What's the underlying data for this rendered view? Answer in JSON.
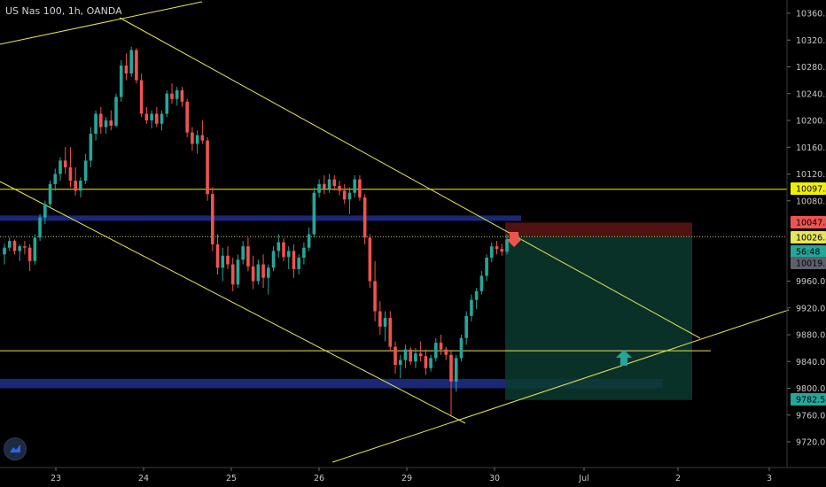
{
  "header": {
    "symbol_title": "US Nas 100, 1h, OANDA"
  },
  "colors": {
    "background": "#000000",
    "up_candle": "#26a69a",
    "down_candle": "#ef5350",
    "trend_lines": "#e6e65a",
    "zones": "#1e2f8c",
    "stop_zone": "#5a1414",
    "target_zone": "#0c3a2e"
  },
  "price_badges": [
    {
      "label": "10097.2",
      "color": "#f0f000",
      "text_color": "#000000"
    },
    {
      "label": "10047.4",
      "color": "#ef5350",
      "text_color": "#ffffff"
    },
    {
      "label": "10026.5",
      "color": "#e6e65a",
      "text_color": "#000000"
    },
    {
      "label": "56:48",
      "color": "#26a69a",
      "text_color": "#ffffff"
    },
    {
      "label": "10019.8",
      "color": "#5d606b",
      "text_color": "#ffffff"
    },
    {
      "label": "9782.5",
      "color": "#26a69a",
      "text_color": "#ffffff"
    }
  ],
  "chart_data": {
    "type": "candlestick",
    "symbol": "US Nas 100",
    "interval": "1h",
    "source": "OANDA",
    "y_ticks": [
      10360,
      10320,
      10280,
      10240,
      10200,
      10160,
      10120,
      10080,
      9960,
      9920,
      9880,
      9840,
      9800,
      9760,
      9720
    ],
    "y_tick_labels": [
      "10360.0",
      "10320.0",
      "10280.0",
      "10240.0",
      "10200.0",
      "10160.0",
      "10120.0",
      "10080.0",
      "9960.0",
      "9920.0",
      "9880.0",
      "9840.0",
      "9800.0",
      "9760.0",
      "9720.0"
    ],
    "ylim": [
      9690,
      10380
    ],
    "x_tick_labels": [
      "23",
      "24",
      "25",
      "26",
      "29",
      "30",
      "Jul",
      "2",
      "3"
    ],
    "grid": false,
    "horizontal_levels": [
      10097.2,
      9856
    ],
    "zones": [
      {
        "from": 10058,
        "to": 10050
      },
      {
        "from": 9814,
        "to": 9800
      }
    ],
    "position": {
      "entry": 10026.5,
      "stop": 10047.4,
      "target": 9782.5
    },
    "candle_values": [
      [
        10000,
        10016,
        9985,
        10010
      ],
      [
        10010,
        10025,
        10005,
        10020
      ],
      [
        10020,
        10022,
        10000,
        10005
      ],
      [
        10005,
        10015,
        9990,
        10012
      ],
      [
        10012,
        10020,
        10000,
        10010
      ],
      [
        10010,
        10015,
        9975,
        9990
      ],
      [
        9990,
        10030,
        9985,
        10025
      ],
      [
        10025,
        10060,
        10020,
        10055
      ],
      [
        10055,
        10080,
        10045,
        10075
      ],
      [
        10075,
        10110,
        10070,
        10105
      ],
      [
        10105,
        10128,
        10095,
        10120
      ],
      [
        10120,
        10145,
        10110,
        10140
      ],
      [
        10140,
        10160,
        10120,
        10130
      ],
      [
        10130,
        10160,
        10100,
        10110
      ],
      [
        10110,
        10130,
        10088,
        10095
      ],
      [
        10095,
        10115,
        10085,
        10110
      ],
      [
        10110,
        10150,
        10105,
        10140
      ],
      [
        10140,
        10190,
        10130,
        10180
      ],
      [
        10180,
        10215,
        10170,
        10210
      ],
      [
        10210,
        10220,
        10180,
        10190
      ],
      [
        10190,
        10205,
        10180,
        10200
      ],
      [
        10200,
        10215,
        10185,
        10192
      ],
      [
        10192,
        10240,
        10190,
        10235
      ],
      [
        10235,
        10290,
        10228,
        10282
      ],
      [
        10282,
        10300,
        10260,
        10270
      ],
      [
        10270,
        10310,
        10265,
        10305
      ],
      [
        10305,
        10308,
        10255,
        10260
      ],
      [
        10260,
        10270,
        10205,
        10210
      ],
      [
        10210,
        10220,
        10195,
        10200
      ],
      [
        10200,
        10215,
        10188,
        10210
      ],
      [
        10210,
        10220,
        10190,
        10195
      ],
      [
        10195,
        10215,
        10185,
        10210
      ],
      [
        10210,
        10245,
        10205,
        10240
      ],
      [
        10240,
        10255,
        10225,
        10232
      ],
      [
        10232,
        10250,
        10222,
        10245
      ],
      [
        10245,
        10250,
        10220,
        10228
      ],
      [
        10228,
        10232,
        10175,
        10182
      ],
      [
        10182,
        10190,
        10155,
        10165
      ],
      [
        10165,
        10185,
        10150,
        10178
      ],
      [
        10178,
        10200,
        10165,
        10170
      ],
      [
        10170,
        10175,
        10080,
        10090
      ],
      [
        10090,
        10100,
        10005,
        10015
      ],
      [
        10015,
        10030,
        9970,
        9980
      ],
      [
        9980,
        10010,
        9960,
        9998
      ],
      [
        9998,
        10012,
        9978,
        9985
      ],
      [
        9985,
        9995,
        9945,
        9955
      ],
      [
        9955,
        10000,
        9950,
        9992
      ],
      [
        9992,
        10020,
        9985,
        10012
      ],
      [
        10012,
        10025,
        9975,
        9982
      ],
      [
        9982,
        9998,
        9948,
        9960
      ],
      [
        9960,
        9992,
        9955,
        9985
      ],
      [
        9985,
        10000,
        9950,
        9965
      ],
      [
        9965,
        9985,
        9940,
        9980
      ],
      [
        9980,
        10012,
        9975,
        10005
      ],
      [
        10005,
        10030,
        9995,
        10018
      ],
      [
        10018,
        10024,
        9990,
        9996
      ],
      [
        9996,
        10012,
        9978,
        10005
      ],
      [
        10005,
        10015,
        9965,
        9978
      ],
      [
        9978,
        10000,
        9970,
        9995
      ],
      [
        9995,
        10018,
        9985,
        10010
      ],
      [
        10010,
        10040,
        10005,
        10030
      ],
      [
        10030,
        10100,
        10025,
        10092
      ],
      [
        10092,
        10112,
        10085,
        10105
      ],
      [
        10105,
        10118,
        10090,
        10098
      ],
      [
        10098,
        10120,
        10092,
        10112
      ],
      [
        10112,
        10118,
        10095,
        10102
      ],
      [
        10102,
        10110,
        10088,
        10095
      ],
      [
        10095,
        10105,
        10075,
        10082
      ],
      [
        10082,
        10100,
        10060,
        10092
      ],
      [
        10092,
        10118,
        10085,
        10112
      ],
      [
        10112,
        10118,
        10080,
        10085
      ],
      [
        10085,
        10090,
        10015,
        10025
      ],
      [
        10025,
        10030,
        9950,
        9960
      ],
      [
        9960,
        9990,
        9900,
        9915
      ],
      [
        9915,
        9930,
        9880,
        9892
      ],
      [
        9892,
        9915,
        9870,
        9905
      ],
      [
        9905,
        9915,
        9855,
        9862
      ],
      [
        9862,
        9870,
        9822,
        9835
      ],
      [
        9835,
        9850,
        9815,
        9842
      ],
      [
        9842,
        9865,
        9830,
        9858
      ],
      [
        9858,
        9862,
        9835,
        9840
      ],
      [
        9840,
        9860,
        9830,
        9852
      ],
      [
        9852,
        9870,
        9840,
        9848
      ],
      [
        9848,
        9858,
        9820,
        9830
      ],
      [
        9830,
        9850,
        9825,
        9845
      ],
      [
        9845,
        9875,
        9840,
        9868
      ],
      [
        9868,
        9880,
        9850,
        9858
      ],
      [
        9858,
        9862,
        9842,
        9850
      ],
      [
        9850,
        9855,
        9760,
        9810
      ],
      [
        9810,
        9850,
        9795,
        9845
      ],
      [
        9845,
        9880,
        9840,
        9875
      ],
      [
        9875,
        9915,
        9865,
        9908
      ],
      [
        9908,
        9940,
        9900,
        9932
      ],
      [
        9932,
        9950,
        9918,
        9945
      ],
      [
        9945,
        9975,
        9940,
        9968
      ],
      [
        9968,
        10000,
        9960,
        9995
      ],
      [
        9995,
        10018,
        9988,
        10012
      ],
      [
        10012,
        10020,
        10000,
        10008
      ],
      [
        10008,
        10016,
        9998,
        10004
      ],
      [
        10004,
        10030,
        10000,
        10022
      ]
    ]
  }
}
